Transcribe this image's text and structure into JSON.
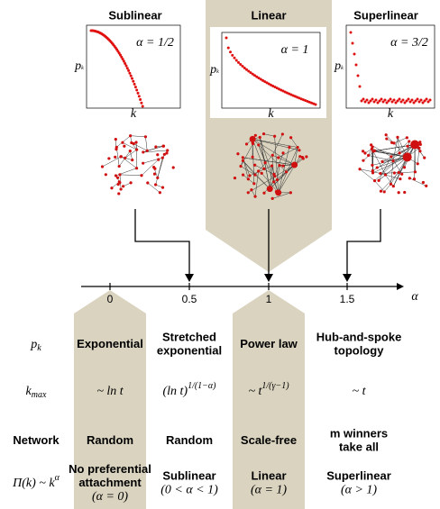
{
  "columns": [
    {
      "title": "Sublinear",
      "alpha_label": "α = 1/2"
    },
    {
      "title": "Linear",
      "alpha_label": "α = 1"
    },
    {
      "title": "Superlinear",
      "alpha_label": "α = 3/2"
    }
  ],
  "plot_axes": {
    "y": "p",
    "y_sub": "k",
    "x": "k"
  },
  "axis": {
    "ticks": [
      "0",
      "0.5",
      "1",
      "1.5"
    ],
    "label": "α"
  },
  "rows": [
    {
      "label": {
        "base": "p",
        "sub": "k"
      },
      "cells": [
        [
          "Exponential"
        ],
        [
          "Stretched",
          "exponential"
        ],
        [
          "Power law"
        ],
        [
          "Hub-and-spoke",
          "topology"
        ]
      ]
    },
    {
      "label": {
        "base": "k",
        "sub": "max"
      },
      "cells": [
        {
          "base": "~ ln t"
        },
        {
          "base": "(ln t)",
          "sup": "1/(1−α)"
        },
        {
          "base": "~ t",
          "sup": "1/(γ−1)"
        },
        {
          "base": "~ t"
        }
      ]
    },
    {
      "label": "Network",
      "cells": [
        [
          "Random"
        ],
        [
          "Random"
        ],
        [
          "Scale-free"
        ],
        [
          "m winners",
          "take all"
        ]
      ]
    },
    {
      "label": {
        "base": "Π(k) ~ k",
        "sup": "α"
      },
      "cells": [
        [
          "No preferential",
          "attachment",
          "(α = 0)"
        ],
        [
          "Sublinear",
          "(0 < α < 1)"
        ],
        [
          "Linear",
          "(α = 1)"
        ],
        [
          "Superlinear",
          "(α > 1)"
        ]
      ]
    }
  ]
}
